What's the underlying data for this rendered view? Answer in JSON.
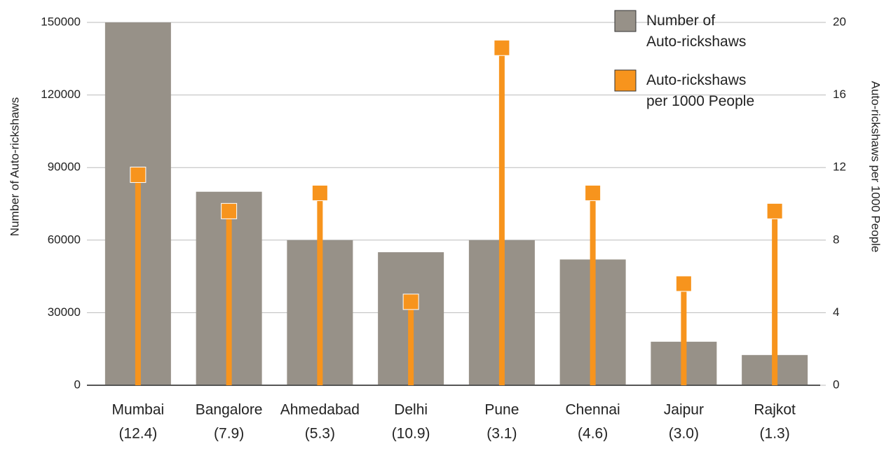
{
  "chart_data": {
    "type": "bar_lollipop",
    "categories": [
      "Mumbai",
      "Bangalore",
      "Ahmedabad",
      "Delhi",
      "Pune",
      "Chennai",
      "Jaipur",
      "Rajkot"
    ],
    "category_sublabels": [
      "(12.4)",
      "(7.9)",
      "(5.3)",
      "(10.9)",
      "(3.1)",
      "(4.6)",
      "(3.0)",
      "(1.3)"
    ],
    "series": [
      {
        "name": "Number of Auto-rickshaws",
        "color": "#979188",
        "values": [
          150000,
          80000,
          60000,
          55000,
          60000,
          52000,
          18000,
          12500
        ]
      },
      {
        "name": "Auto-rickshaws per 1000 People",
        "color": "#f7941d",
        "axis": "y2",
        "values": [
          11.6,
          9.6,
          10.6,
          4.6,
          18.6,
          10.6,
          5.6,
          9.6
        ]
      }
    ],
    "ylabel": "Number of Auto-rickshaws",
    "y2label": "Auto-rickshaws per 1000 People",
    "ylim": [
      0,
      150000
    ],
    "yticks": [
      0,
      30000,
      60000,
      90000,
      120000,
      150000
    ],
    "y2lim": [
      0,
      20
    ],
    "y2ticks": [
      0,
      4,
      8,
      12,
      16,
      20
    ],
    "grid": true,
    "legend": "top-right"
  }
}
